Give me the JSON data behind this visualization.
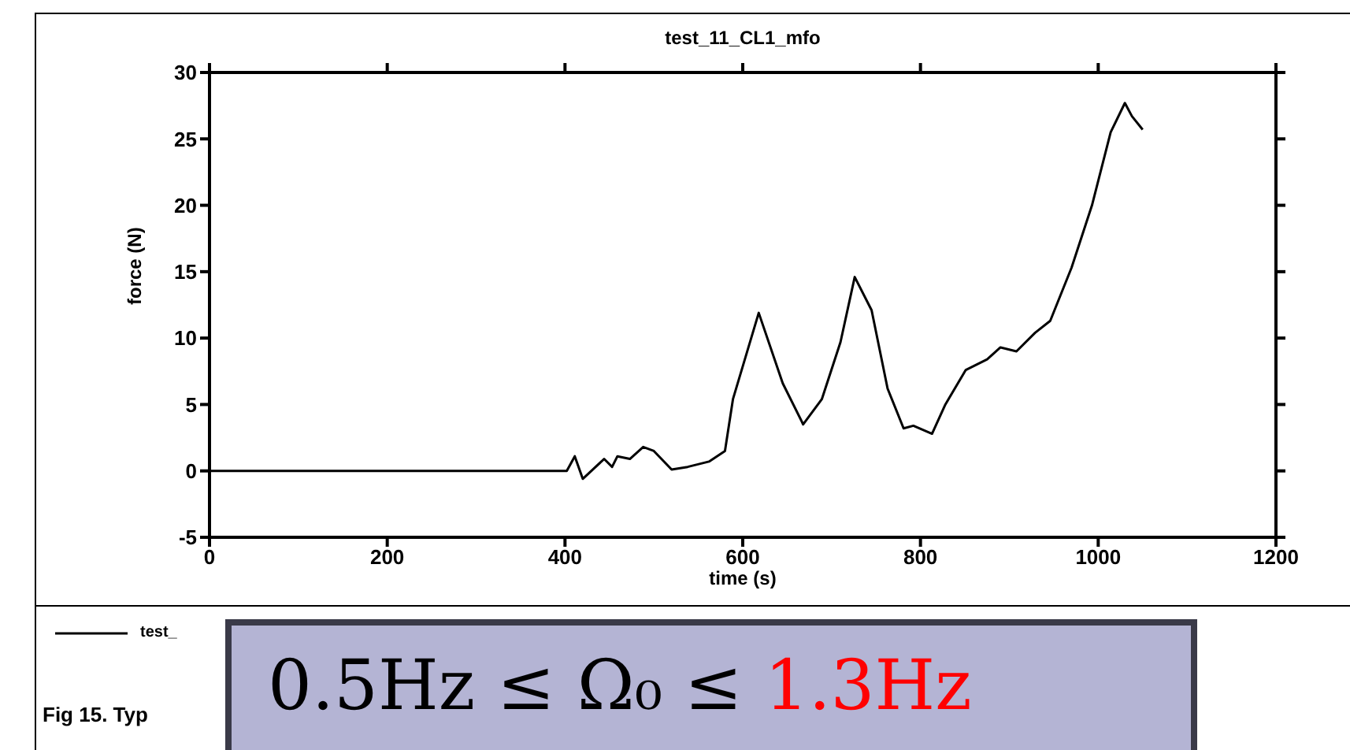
{
  "chart_data": {
    "type": "line",
    "title": "test_11_CL1_mfo",
    "xlabel": "time (s)",
    "ylabel": "force (N)",
    "x": [
      0,
      402,
      411,
      420,
      444,
      453,
      459,
      473,
      488,
      500,
      520,
      538,
      562,
      580,
      589,
      618,
      645,
      668,
      689,
      710,
      726,
      745,
      763,
      781,
      792,
      813,
      828,
      851,
      875,
      890,
      908,
      929,
      946,
      970,
      993,
      1014,
      1030,
      1038,
      1050
    ],
    "series": [
      {
        "name": "test_",
        "color": "#000000",
        "values": [
          0,
          0,
          1.1,
          -0.6,
          0.9,
          0.3,
          1.1,
          0.9,
          1.8,
          1.5,
          0.1,
          0.3,
          0.7,
          1.5,
          5.4,
          11.9,
          6.6,
          3.5,
          5.4,
          9.7,
          14.6,
          12.1,
          6.2,
          3.2,
          3.4,
          2.8,
          5.0,
          7.6,
          8.4,
          9.3,
          9.0,
          10.4,
          11.3,
          15.3,
          20.0,
          25.5,
          27.7,
          26.7,
          25.7
        ]
      }
    ],
    "xlim": [
      0,
      1200
    ],
    "xticks": [
      0,
      200,
      400,
      600,
      800,
      1000,
      1200
    ],
    "ylim": [
      -5,
      30
    ],
    "yticks": [
      -5,
      0,
      5,
      10,
      15,
      20,
      25,
      30
    ],
    "grid": false,
    "legend": "bottom",
    "marker": "none",
    "line_style": "solid",
    "annotations": [
      "Fig 15. Typ",
      "0.5Hz ≤ Ω₀ ≤",
      "1.3Hz"
    ]
  }
}
